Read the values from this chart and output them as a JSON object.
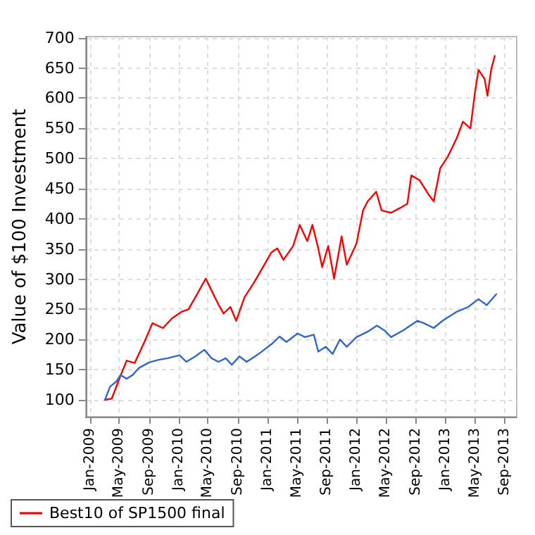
{
  "chart_data": {
    "type": "line",
    "ylabel": "Value of $100 Investment",
    "grid": true,
    "legend": "bottom",
    "marker": "none",
    "line_style": "solid",
    "xlim": [
      "2008-12-15",
      "2013-10-20"
    ],
    "xticks": [
      {
        "value": "2009-01-01",
        "label": "Jan-2009"
      },
      {
        "value": "2009-05-01",
        "label": "May-2009"
      },
      {
        "value": "2009-09-01",
        "label": "Sep-2009"
      },
      {
        "value": "2010-01-01",
        "label": "Jan-2010"
      },
      {
        "value": "2010-05-01",
        "label": "May-2010"
      },
      {
        "value": "2010-09-01",
        "label": "Sep-2010"
      },
      {
        "value": "2011-01-01",
        "label": "Jan-2011"
      },
      {
        "value": "2011-05-01",
        "label": "May-2011"
      },
      {
        "value": "2011-09-01",
        "label": "Sep-2011"
      },
      {
        "value": "2012-01-01",
        "label": "Jan-2012"
      },
      {
        "value": "2012-05-01",
        "label": "May-2012"
      },
      {
        "value": "2012-09-01",
        "label": "Sep-2012"
      },
      {
        "value": "2013-01-01",
        "label": "Jan-2013"
      },
      {
        "value": "2013-05-01",
        "label": "May-2013"
      },
      {
        "value": "2013-09-01",
        "label": "Sep-2013"
      }
    ],
    "ylim": [
      72,
      702
    ],
    "yticks": [
      100,
      150,
      200,
      250,
      300,
      350,
      400,
      450,
      500,
      550,
      600,
      650,
      700
    ],
    "series": [
      {
        "name": "Best10 of SP1500 final",
        "color": "#ff0000",
        "x": [
          "2009-03-04",
          "2009-04-01",
          "2009-05-04",
          "2009-06-01",
          "2009-07-04",
          "2009-08-13",
          "2009-09-15",
          "2009-10-28",
          "2009-12-04",
          "2010-01-13",
          "2010-02-10",
          "2010-03-10",
          "2010-04-22",
          "2010-05-16",
          "2010-06-13",
          "2010-07-04",
          "2010-08-01",
          "2010-08-25",
          "2010-09-28",
          "2010-11-04",
          "2010-12-13",
          "2011-01-16",
          "2011-02-10",
          "2011-03-07",
          "2011-04-16",
          "2011-05-13",
          "2011-06-13",
          "2011-07-04",
          "2011-07-28",
          "2011-08-13",
          "2011-09-07",
          "2011-10-01",
          "2011-11-01",
          "2011-11-22",
          "2012-01-01",
          "2012-01-28",
          "2012-02-16",
          "2012-03-22",
          "2012-04-13",
          "2012-05-22",
          "2012-06-28",
          "2012-07-28",
          "2012-08-13",
          "2012-09-16",
          "2012-10-22",
          "2012-11-13",
          "2012-12-10",
          "2013-01-10",
          "2013-02-16",
          "2013-03-13",
          "2013-04-13",
          "2013-05-01",
          "2013-05-16",
          "2013-06-10",
          "2013-06-22",
          "2013-07-07",
          "2013-07-22"
        ],
        "values": [
          100,
          102,
          137,
          165,
          161,
          196,
          227,
          219,
          235,
          246,
          250,
          270,
          301,
          281,
          258,
          243,
          254,
          231,
          270,
          293,
          320,
          344,
          351,
          332,
          355,
          390,
          363,
          390,
          351,
          320,
          355,
          301,
          371,
          324,
          359,
          414,
          429,
          445,
          414,
          410,
          418,
          425,
          472,
          464,
          441,
          429,
          484,
          503,
          534,
          561,
          550,
          608,
          647,
          632,
          604,
          647,
          670
        ]
      },
      {
        "color": "#3366cc",
        "x": [
          "2009-03-04",
          "2009-03-25",
          "2009-04-19",
          "2009-05-07",
          "2009-06-01",
          "2009-06-25",
          "2009-07-22",
          "2009-09-01",
          "2009-10-07",
          "2009-11-16",
          "2010-01-04",
          "2010-02-01",
          "2010-03-10",
          "2010-04-16",
          "2010-05-16",
          "2010-06-13",
          "2010-07-13",
          "2010-08-07",
          "2010-09-07",
          "2010-10-07",
          "2010-11-25",
          "2011-01-22",
          "2011-02-19",
          "2011-03-19",
          "2011-05-04",
          "2011-06-04",
          "2011-07-10",
          "2011-07-28",
          "2011-08-28",
          "2011-09-25",
          "2011-10-25",
          "2011-11-22",
          "2012-01-01",
          "2012-02-16",
          "2012-03-25",
          "2012-04-25",
          "2012-05-22",
          "2012-07-10",
          "2012-09-07",
          "2012-10-04",
          "2012-11-13",
          "2012-12-19",
          "2013-02-16",
          "2013-04-04",
          "2013-05-16",
          "2013-06-19",
          "2013-07-28"
        ],
        "values": [
          100,
          122,
          130,
          141,
          135,
          141,
          153,
          162,
          166,
          169,
          174,
          163,
          172,
          183,
          169,
          163,
          169,
          158,
          172,
          163,
          176,
          194,
          205,
          196,
          210,
          204,
          208,
          180,
          188,
          176,
          200,
          188,
          204,
          213,
          223,
          215,
          204,
          215,
          231,
          227,
          219,
          231,
          246,
          254,
          267,
          257,
          275
        ]
      }
    ]
  }
}
